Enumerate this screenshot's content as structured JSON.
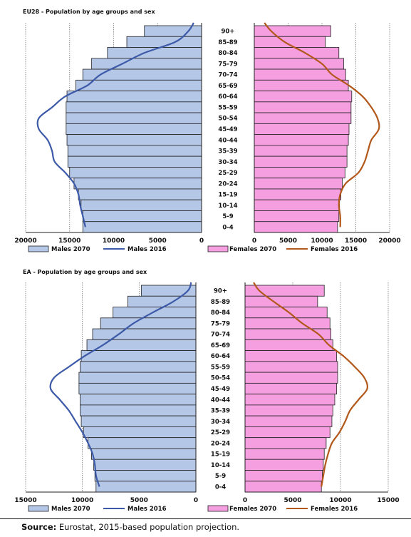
{
  "panels": [
    {
      "title": "EU28 - Population by age groups and sex",
      "males_axis": {
        "ticks": [
          "20000",
          "15000",
          "10000",
          "5000",
          "0"
        ],
        "max": 20000
      },
      "females_axis": {
        "ticks": [
          "0",
          "5000",
          "10000",
          "15000",
          "20000"
        ],
        "max": 20000
      },
      "legend": {
        "males_2070": "Males 2070",
        "males_2016": "Males 2016",
        "females_2070": "Females 2070",
        "females_2016": "Females 2016"
      }
    },
    {
      "title": "EA - Population by age groups and sex",
      "males_axis": {
        "ticks": [
          "15000",
          "10000",
          "5000",
          "0"
        ],
        "max": 15000
      },
      "females_axis": {
        "ticks": [
          "0",
          "5000",
          "10000",
          "15000"
        ],
        "max": 15000
      },
      "legend": {
        "males_2070": "Males 2070",
        "males_2016": "Males 2016",
        "females_2070": "Females 2070",
        "females_2016": "Females 2016"
      }
    }
  ],
  "colors": {
    "males_bar": "#b4c7e7",
    "females_bar": "#f59fe0",
    "males_line": "#3d5aa8",
    "females_line": "#b3581b"
  },
  "chart_data": [
    {
      "type": "bar",
      "orientation": "horizontal-pyramid",
      "title": "EU28 - Population by age groups and sex",
      "categories": [
        "90+",
        "85-89",
        "80-84",
        "75-79",
        "70-74",
        "65-69",
        "60-64",
        "55-59",
        "50-54",
        "45-49",
        "40-44",
        "35-39",
        "30-34",
        "25-29",
        "20-24",
        "15-19",
        "10-14",
        "5-9",
        "0-4"
      ],
      "xlim_males": [
        20000,
        0
      ],
      "xlim_females": [
        0,
        20000
      ],
      "series": [
        {
          "name": "Males 2070",
          "kind": "bar",
          "side": "left",
          "values": [
            6500,
            8500,
            10700,
            12500,
            13500,
            14300,
            15300,
            15400,
            15400,
            15400,
            15300,
            15200,
            15200,
            15000,
            14500,
            14000,
            13700,
            13500,
            13500
          ]
        },
        {
          "name": "Males 2016",
          "kind": "line",
          "side": "left",
          "values": [
            1500,
            3000,
            6500,
            9000,
            11500,
            13000,
            15500,
            17000,
            18500,
            18500,
            17500,
            17000,
            16700,
            15500,
            14500,
            14000,
            13800,
            13500,
            13200
          ]
        },
        {
          "name": "Females 2070",
          "kind": "bar",
          "side": "right",
          "values": [
            11300,
            10500,
            12500,
            13200,
            13500,
            13900,
            14400,
            14300,
            14300,
            14000,
            13900,
            13700,
            13700,
            13400,
            13000,
            12800,
            12600,
            12500,
            12300
          ]
        },
        {
          "name": "Females 2016",
          "kind": "line",
          "side": "right",
          "values": [
            2500,
            4500,
            7500,
            10000,
            11500,
            14000,
            16000,
            17300,
            18200,
            18400,
            17300,
            16800,
            16300,
            15400,
            13500,
            12700,
            12500,
            12700,
            12700
          ]
        }
      ]
    },
    {
      "type": "bar",
      "orientation": "horizontal-pyramid",
      "title": "EA - Population by age groups and sex",
      "categories": [
        "90+",
        "85-89",
        "80-84",
        "75-79",
        "70-74",
        "65-69",
        "60-64",
        "55-59",
        "50-54",
        "45-49",
        "40-44",
        "35-39",
        "30-34",
        "25-29",
        "20-24",
        "15-19",
        "10-14",
        "5-9",
        "0-4"
      ],
      "xlim_males": [
        15000,
        0
      ],
      "xlim_females": [
        0,
        15000
      ],
      "series": [
        {
          "name": "Males 2070",
          "kind": "bar",
          "side": "left",
          "values": [
            4800,
            6000,
            7300,
            8400,
            9100,
            9600,
            10100,
            10200,
            10300,
            10300,
            10200,
            10200,
            10100,
            9900,
            9500,
            9200,
            9000,
            8900,
            8800
          ]
        },
        {
          "name": "Males 2016",
          "kind": "line",
          "side": "left",
          "values": [
            700,
            2000,
            3800,
            5500,
            6800,
            8200,
            9800,
            11200,
            12500,
            12800,
            12000,
            11200,
            10600,
            10000,
            9500,
            9100,
            8900,
            8800,
            8500
          ]
        },
        {
          "name": "Females 2070",
          "kind": "bar",
          "side": "right",
          "values": [
            8300,
            7600,
            8600,
            8900,
            9000,
            9200,
            9600,
            9700,
            9700,
            9600,
            9400,
            9200,
            9100,
            8900,
            8500,
            8300,
            8200,
            8100,
            8000
          ]
        },
        {
          "name": "Females 2016",
          "kind": "line",
          "side": "right",
          "values": [
            1500,
            3000,
            4600,
            6000,
            7700,
            8800,
            10300,
            11500,
            12500,
            12800,
            11900,
            11000,
            10500,
            9900,
            9100,
            8700,
            8400,
            8200,
            8000
          ]
        }
      ]
    }
  ],
  "source": {
    "label": "Source:",
    "text": " Eurostat, 2015-based population projection."
  }
}
